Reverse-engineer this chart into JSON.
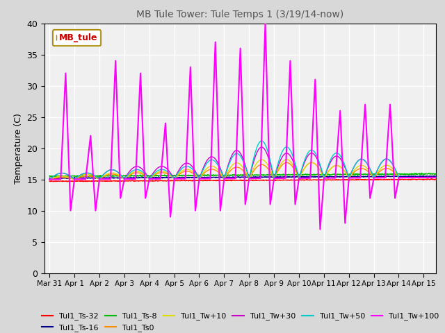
{
  "title": "MB Tule Tower: Tule Temps 1 (3/19/14-now)",
  "ylabel": "Temperature (C)",
  "ylim": [
    0,
    40
  ],
  "yticks": [
    0,
    5,
    10,
    15,
    20,
    25,
    30,
    35,
    40
  ],
  "x_tick_labels": [
    "Mar 31",
    "Apr 1",
    "Apr 2",
    "Apr 3",
    "Apr 4",
    "Apr 5",
    "Apr 6",
    "Apr 7",
    "Apr 8",
    "Apr 9",
    "Apr 10",
    "Apr 11",
    "Apr 12",
    "Apr 13",
    "Apr 14",
    "Apr 15"
  ],
  "x_tick_positions": [
    0,
    1,
    2,
    3,
    4,
    5,
    6,
    7,
    8,
    9,
    10,
    11,
    12,
    13,
    14,
    15
  ],
  "series_colors": [
    "#ff0000",
    "#00008b",
    "#00bb00",
    "#ff8c00",
    "#dddd00",
    "#cc00cc",
    "#00cccc",
    "#ff00ff"
  ],
  "series_names": [
    "Tul1_Ts-32",
    "Tul1_Ts-16",
    "Tul1_Ts-8",
    "Tul1_Ts0",
    "Tul1_Tw+10",
    "Tul1_Tw+30",
    "Tul1_Tw+50",
    "Tul1_Tw+100"
  ],
  "fig_bg_color": "#d8d8d8",
  "plot_bg_color": "#f0f0f0",
  "grid_color": "#ffffff",
  "title_color": "#555555"
}
